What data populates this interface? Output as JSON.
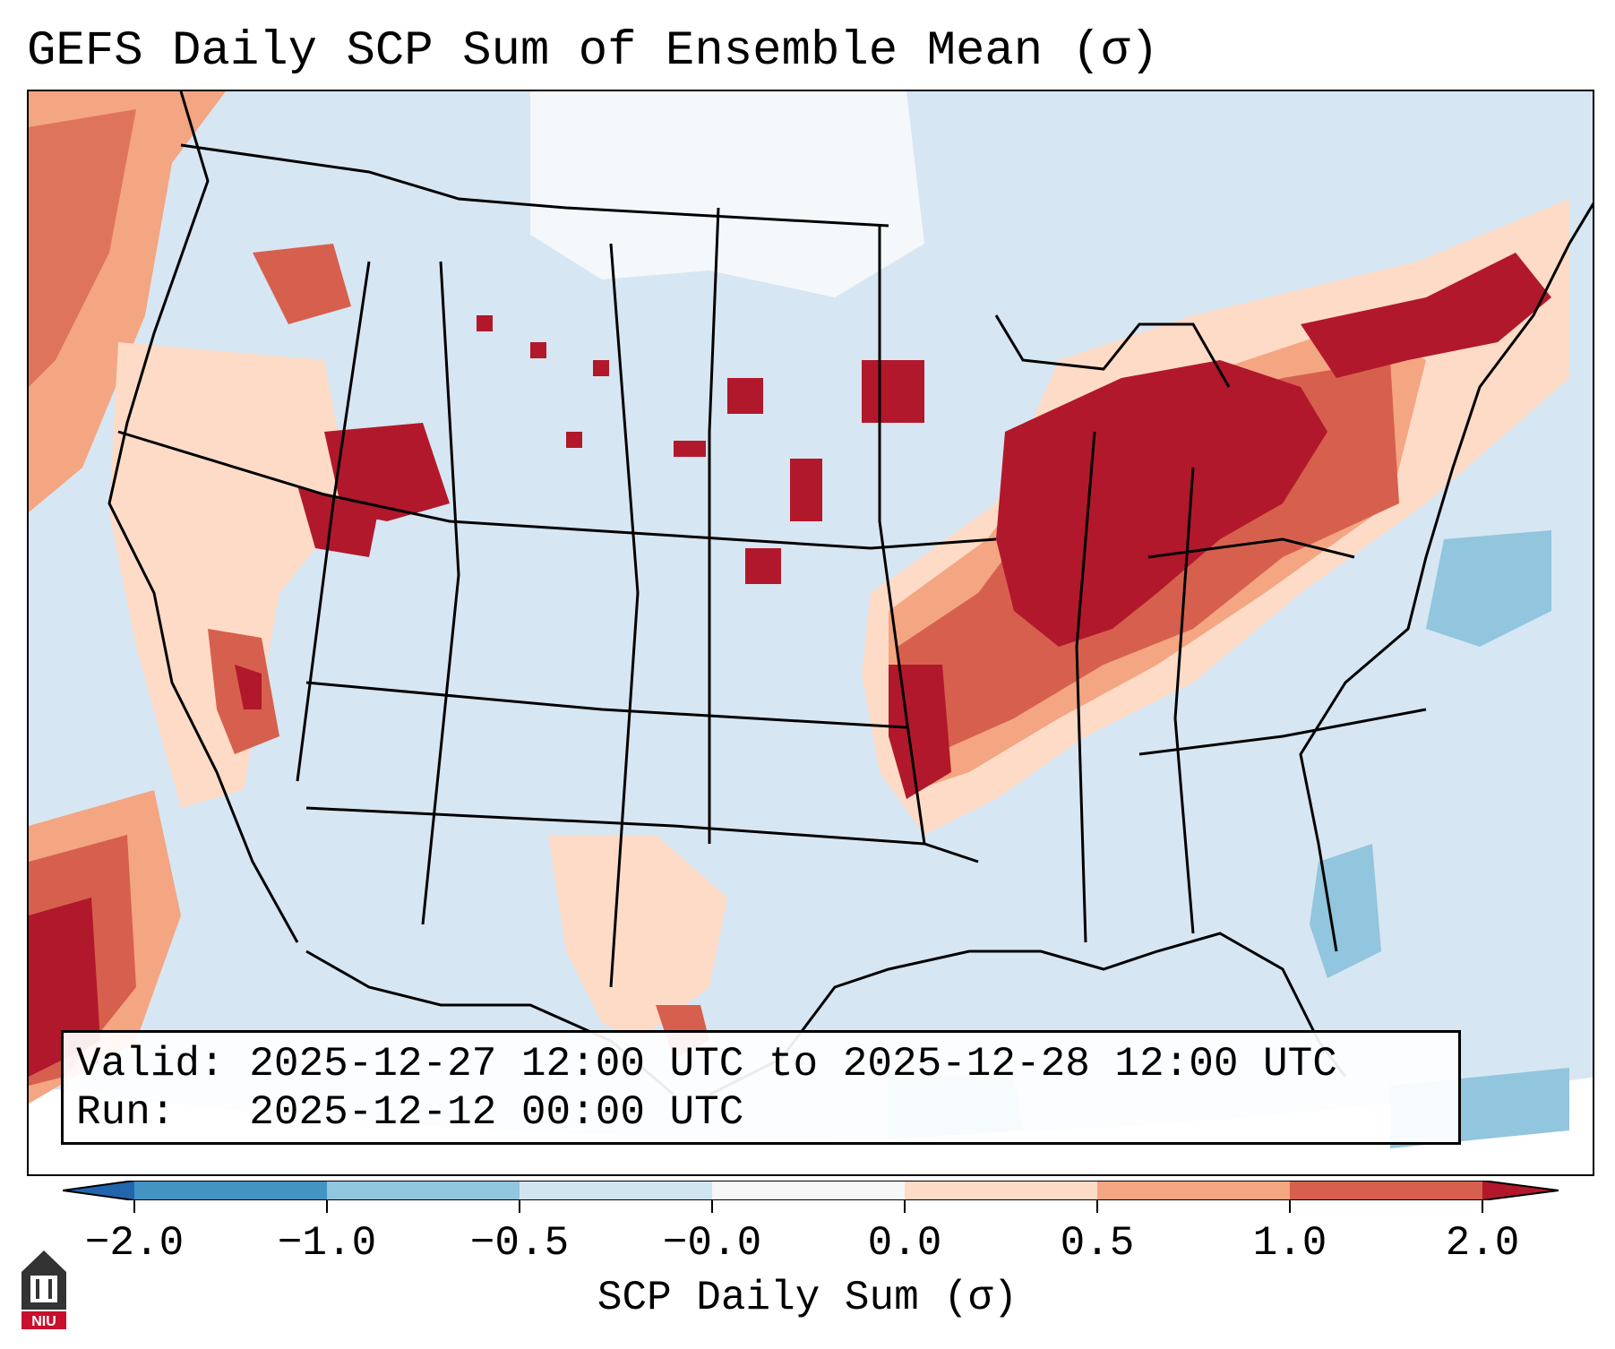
{
  "title": "GEFS Daily SCP Sum of Ensemble Mean (σ)",
  "valid": {
    "valid_label": "Valid:",
    "valid_value": "2025-12-27 12:00 UTC to 2025-12-28 12:00 UTC",
    "run_label": "Run:",
    "run_value": "2025-12-12 00:00 UTC"
  },
  "colorbar": {
    "label": "SCP Daily Sum (σ)",
    "ticks": [
      "−2.0",
      "−1.0",
      "−0.5",
      "−0.0",
      "0.0",
      "0.5",
      "1.0",
      "2.0"
    ],
    "colors": [
      "#4393c3",
      "#92c5de",
      "#d1e5f0",
      "#f7f7f7",
      "#fddbc7",
      "#f4a582",
      "#d6604d",
      "#b2182b"
    ]
  },
  "logo": {
    "name": "NIU"
  }
}
